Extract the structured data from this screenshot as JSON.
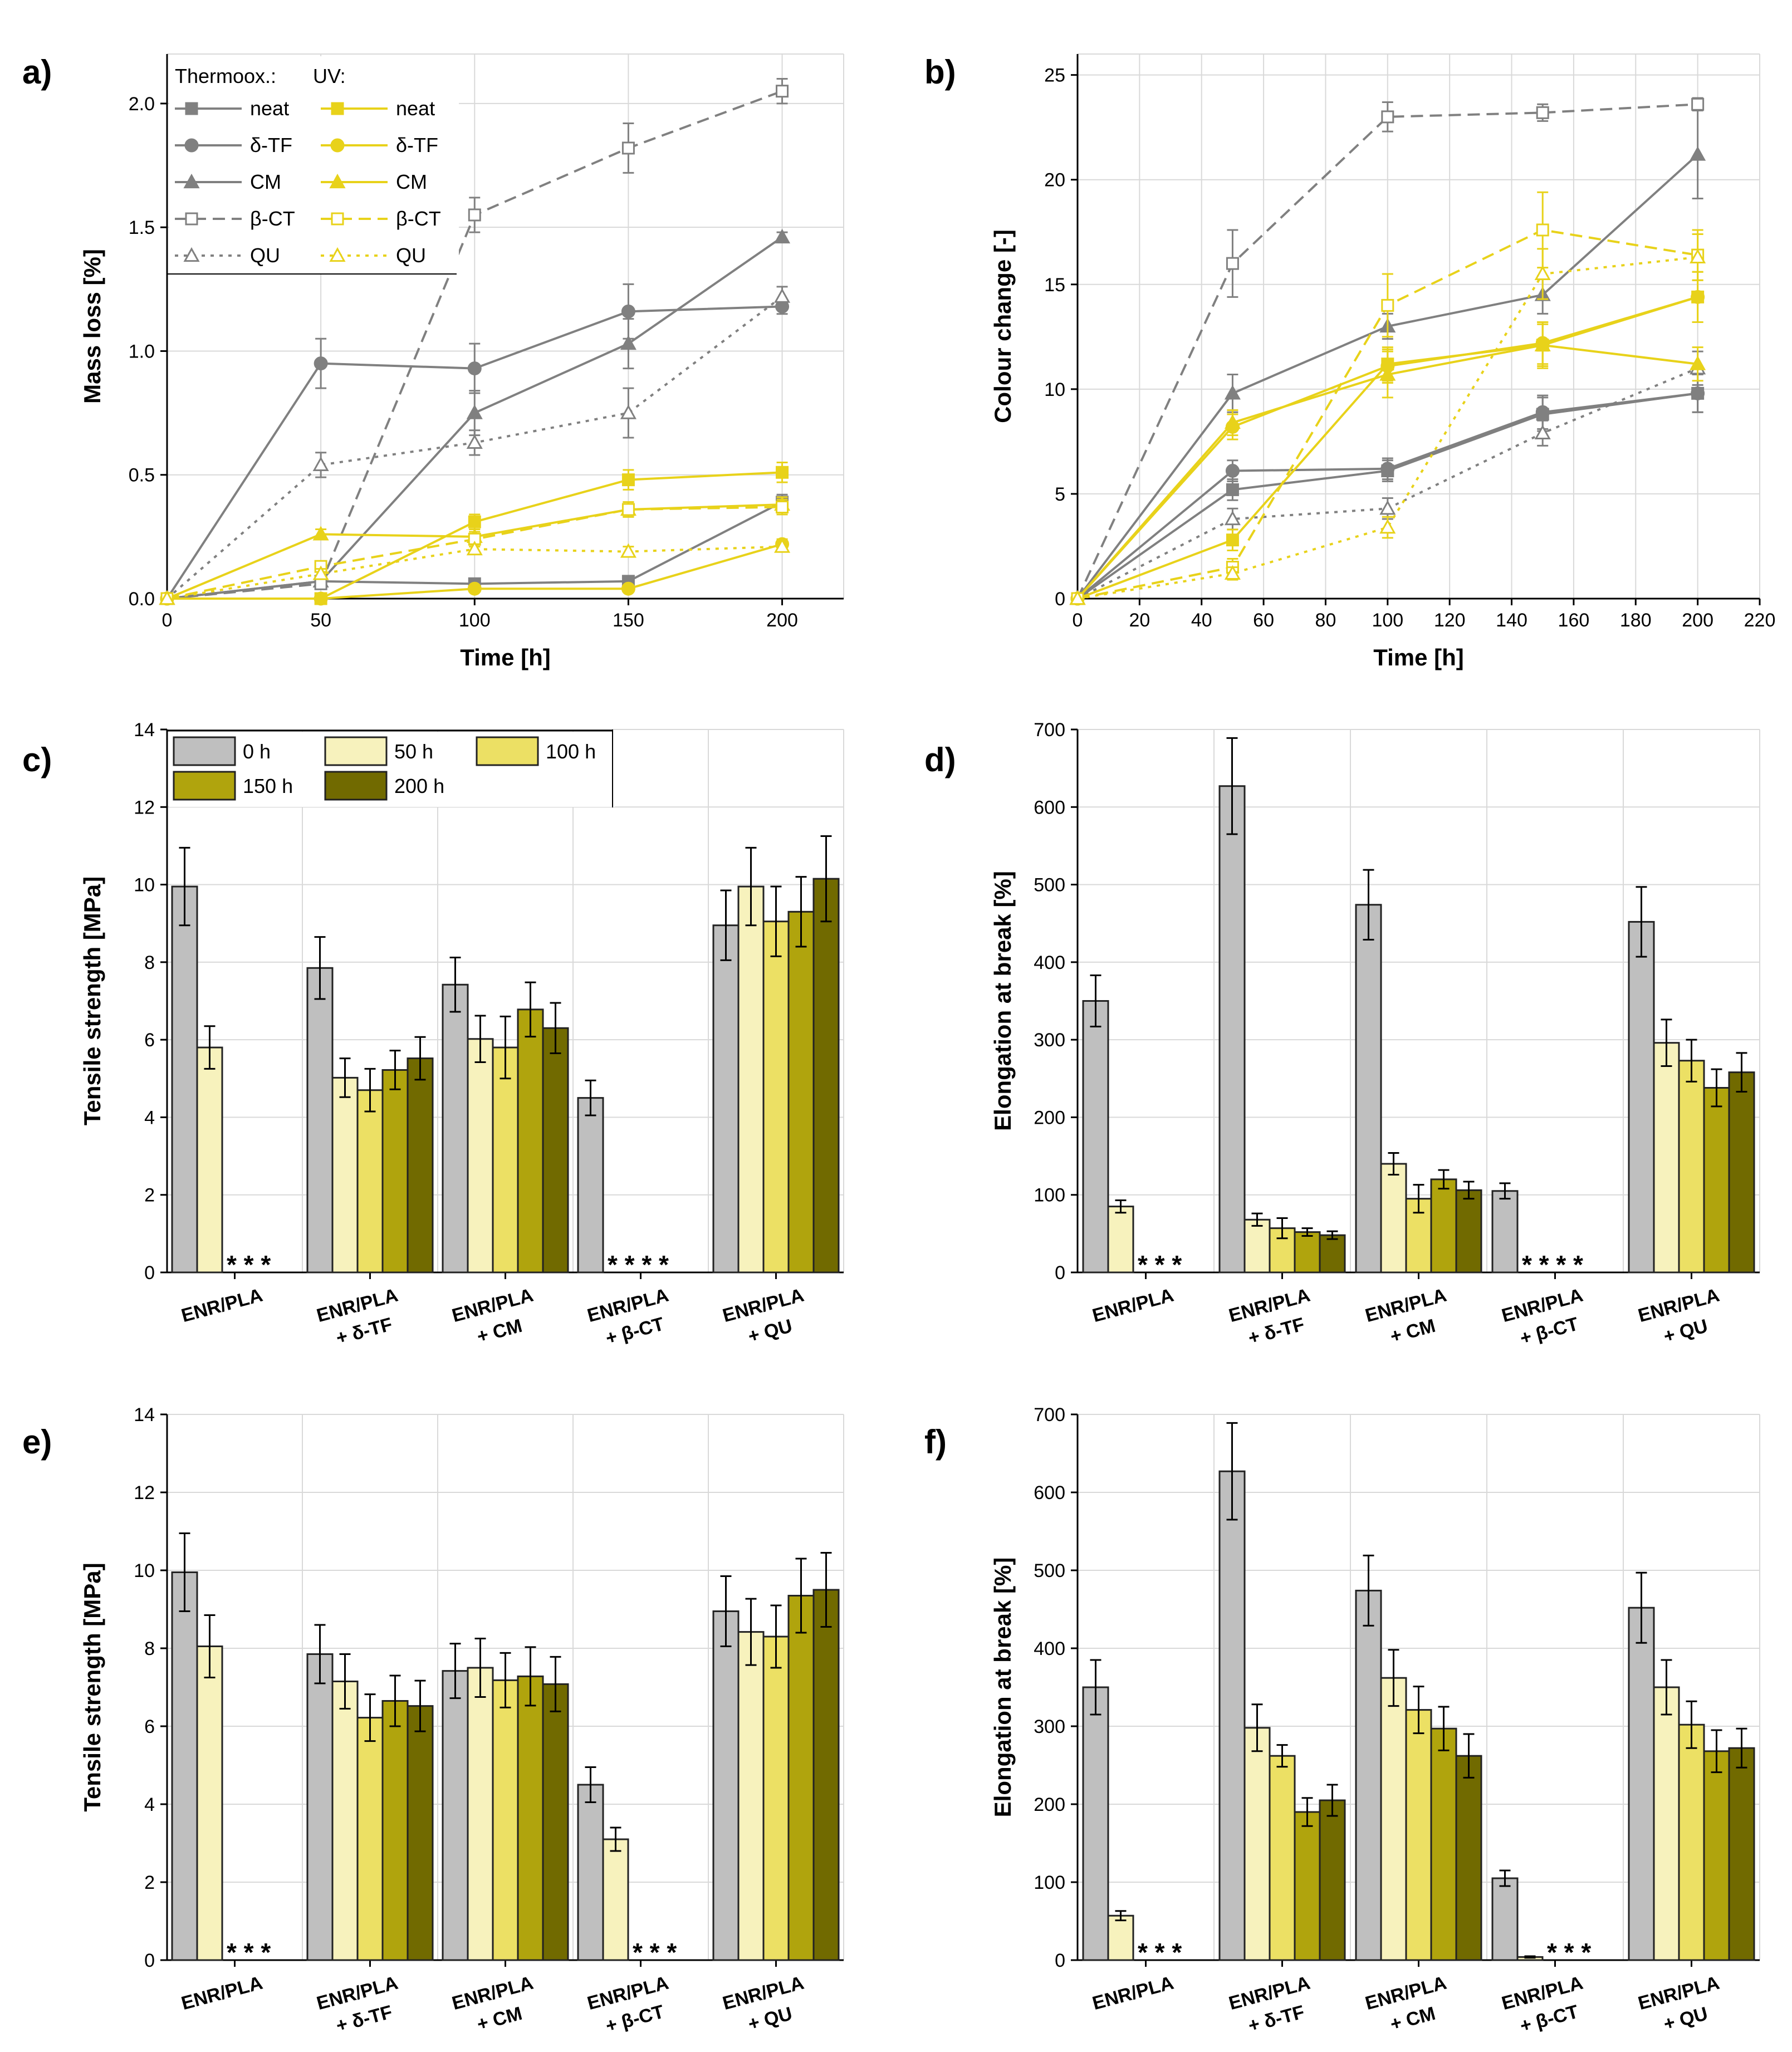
{
  "colors": {
    "thermo": "#808080",
    "uv": "#e8d21a",
    "h0": "#bfbfbf",
    "h50": "#f7f2bd",
    "h100": "#ece064",
    "h150": "#b0a40d",
    "h200": "#716a00",
    "grid": "#d9d9d9",
    "axis": "#000000"
  },
  "chart_data": [
    {
      "id": "a",
      "panel": "a)",
      "type": "line",
      "xlabel": "Time [h]",
      "ylabel": "Mass loss [%]",
      "xlim": [
        0,
        220
      ],
      "ylim": [
        0,
        2.2
      ],
      "xticks": [
        0,
        50,
        100,
        150,
        200
      ],
      "yticks": [
        0.0,
        0.5,
        1.0,
        1.5,
        2.0
      ],
      "ytick_labels": [
        "0.0",
        "0.5",
        "1.0",
        "1.5",
        "2.0"
      ],
      "legend": {
        "title_thermo": "Thermoox.:",
        "title_uv": "UV:",
        "labels": [
          "neat",
          "δ-TF",
          "CM",
          "β-CT",
          "QU"
        ]
      },
      "x": [
        0,
        50,
        100,
        150,
        200
      ],
      "series": [
        {
          "name": "neat",
          "group": "thermo",
          "marker": "square",
          "filled": true,
          "dash": "solid",
          "values": [
            0,
            0.07,
            0.06,
            0.07,
            0.39
          ],
          "errors": [
            0,
            0.02,
            0.02,
            0.02,
            0.03
          ]
        },
        {
          "name": "δ-TF",
          "group": "thermo",
          "marker": "circle",
          "filled": true,
          "dash": "solid",
          "values": [
            0,
            0.95,
            0.93,
            1.16,
            1.18
          ],
          "errors": [
            0,
            0.1,
            0.1,
            0.11,
            0.03
          ]
        },
        {
          "name": "CM",
          "group": "thermo",
          "marker": "triangle",
          "filled": true,
          "dash": "solid",
          "values": [
            0,
            0.07,
            0.75,
            1.03,
            1.46
          ],
          "errors": [
            0,
            0.02,
            0.09,
            0.1,
            0.02
          ]
        },
        {
          "name": "β-CT",
          "group": "thermo",
          "marker": "square",
          "filled": false,
          "dash": "dash",
          "values": [
            0,
            0.06,
            1.55,
            1.82,
            2.05
          ],
          "errors": [
            0,
            0.02,
            0.07,
            0.1,
            0.05
          ]
        },
        {
          "name": "QU",
          "group": "thermo",
          "marker": "triangle",
          "filled": false,
          "dash": "dot",
          "values": [
            0,
            0.54,
            0.63,
            0.75,
            1.22
          ],
          "errors": [
            0,
            0.05,
            0.05,
            0.1,
            0.04
          ]
        },
        {
          "name": "neat",
          "group": "uv",
          "marker": "square",
          "filled": true,
          "dash": "solid",
          "values": [
            0,
            0.0,
            0.31,
            0.48,
            0.51
          ],
          "errors": [
            0,
            0.01,
            0.03,
            0.04,
            0.04
          ]
        },
        {
          "name": "δ-TF",
          "group": "uv",
          "marker": "circle",
          "filled": true,
          "dash": "solid",
          "values": [
            0,
            0.0,
            0.04,
            0.04,
            0.22
          ],
          "errors": [
            0,
            0.01,
            0.01,
            0.01,
            0.02
          ]
        },
        {
          "name": "CM",
          "group": "uv",
          "marker": "triangle",
          "filled": true,
          "dash": "solid",
          "values": [
            0,
            0.26,
            0.25,
            0.36,
            0.38
          ],
          "errors": [
            0,
            0.02,
            0.03,
            0.03,
            0.03
          ]
        },
        {
          "name": "β-CT",
          "group": "uv",
          "marker": "square",
          "filled": false,
          "dash": "dash",
          "values": [
            0,
            0.13,
            0.24,
            0.36,
            0.37
          ],
          "errors": [
            0,
            0.02,
            0.03,
            0.03,
            0.03
          ]
        },
        {
          "name": "QU",
          "group": "uv",
          "marker": "triangle",
          "filled": false,
          "dash": "dot",
          "values": [
            0,
            0.1,
            0.2,
            0.19,
            0.21
          ],
          "errors": [
            0,
            0.02,
            0.02,
            0.02,
            0.02
          ]
        }
      ]
    },
    {
      "id": "b",
      "panel": "b)",
      "type": "line",
      "xlabel": "Time [h]",
      "ylabel": "Colour change [-]",
      "xlim": [
        0,
        220
      ],
      "ylim": [
        0,
        26
      ],
      "xticks": [
        0,
        20,
        40,
        60,
        80,
        100,
        120,
        140,
        160,
        180,
        200,
        220
      ],
      "yticks": [
        0,
        5,
        10,
        15,
        20,
        25
      ],
      "ytick_labels": [
        "0",
        "5",
        "10",
        "15",
        "20",
        "25"
      ],
      "x": [
        0,
        50,
        100,
        150,
        200
      ],
      "series": [
        {
          "name": "neat",
          "group": "thermo",
          "marker": "square",
          "filled": true,
          "dash": "solid",
          "values": [
            0,
            5.2,
            6.1,
            8.8,
            9.8
          ],
          "errors": [
            0,
            0.5,
            0.5,
            0.8,
            0.9
          ]
        },
        {
          "name": "δ-TF",
          "group": "thermo",
          "marker": "circle",
          "filled": true,
          "dash": "solid",
          "values": [
            0,
            6.1,
            6.2,
            8.9,
            9.8
          ],
          "errors": [
            0,
            0.5,
            0.5,
            0.8,
            0.9
          ]
        },
        {
          "name": "CM",
          "group": "thermo",
          "marker": "triangle",
          "filled": true,
          "dash": "solid",
          "values": [
            0,
            9.8,
            13.0,
            14.5,
            21.2
          ],
          "errors": [
            0,
            0.9,
            0.6,
            0.9,
            2.1
          ]
        },
        {
          "name": "β-CT",
          "group": "thermo",
          "marker": "square",
          "filled": false,
          "dash": "dash",
          "values": [
            0,
            16.0,
            23.0,
            23.2,
            23.6
          ],
          "errors": [
            0,
            1.6,
            0.7,
            0.4,
            0.3
          ]
        },
        {
          "name": "QU",
          "group": "thermo",
          "marker": "triangle",
          "filled": false,
          "dash": "dot",
          "values": [
            0,
            3.8,
            4.3,
            7.9,
            11.0
          ],
          "errors": [
            0,
            0.5,
            0.5,
            0.6,
            0.8
          ]
        },
        {
          "name": "neat",
          "group": "uv",
          "marker": "square",
          "filled": true,
          "dash": "solid",
          "values": [
            0,
            2.8,
            11.2,
            12.1,
            14.4
          ],
          "errors": [
            0,
            0.5,
            0.8,
            1.0,
            1.2
          ]
        },
        {
          "name": "δ-TF",
          "group": "uv",
          "marker": "circle",
          "filled": true,
          "dash": "solid",
          "values": [
            0,
            8.2,
            11.1,
            12.2,
            14.4
          ],
          "errors": [
            0,
            0.6,
            0.8,
            1.0,
            1.2
          ]
        },
        {
          "name": "CM",
          "group": "uv",
          "marker": "triangle",
          "filled": true,
          "dash": "solid",
          "values": [
            0,
            8.4,
            10.7,
            12.1,
            11.2
          ],
          "errors": [
            0,
            0.6,
            1.1,
            1.1,
            0.8
          ]
        },
        {
          "name": "β-CT",
          "group": "uv",
          "marker": "square",
          "filled": false,
          "dash": "dash",
          "values": [
            0,
            1.5,
            14.0,
            17.6,
            16.4
          ],
          "errors": [
            0,
            0.4,
            1.5,
            1.8,
            1.2
          ]
        },
        {
          "name": "QU",
          "group": "uv",
          "marker": "triangle",
          "filled": false,
          "dash": "dot",
          "values": [
            0,
            1.2,
            3.4,
            15.5,
            16.3
          ],
          "errors": [
            0,
            0.3,
            0.5,
            1.2,
            1.1
          ]
        }
      ]
    },
    {
      "id": "c",
      "panel": "c)",
      "type": "bar",
      "xlabel": "",
      "ylabel": "Tensile strength [MPa]",
      "ylim": [
        0,
        14
      ],
      "yticks": [
        0,
        2,
        4,
        6,
        8,
        10,
        12,
        14
      ],
      "ytick_labels": [
        "0",
        "2",
        "4",
        "6",
        "8",
        "10",
        "12",
        "14"
      ],
      "categories": [
        [
          "ENR/PLA"
        ],
        [
          "ENR/PLA",
          "+ δ-TF"
        ],
        [
          "ENR/PLA",
          "+ CM"
        ],
        [
          "ENR/PLA",
          "+ β-CT"
        ],
        [
          "ENR/PLA",
          "+ QU"
        ]
      ],
      "legend": [
        "0 h",
        "50 h",
        "100 h",
        "150 h",
        "200 h"
      ],
      "series": [
        {
          "name": "0 h",
          "values": [
            9.95,
            7.85,
            7.42,
            4.5,
            8.95
          ],
          "errors": [
            1.0,
            0.8,
            0.7,
            0.45,
            0.9
          ]
        },
        {
          "name": "50 h",
          "values": [
            5.8,
            5.02,
            6.02,
            0,
            9.95
          ],
          "errors": [
            0.55,
            0.5,
            0.6,
            0,
            1.0
          ]
        },
        {
          "name": "100 h",
          "values": [
            0,
            4.7,
            5.8,
            0,
            9.05
          ],
          "errors": [
            0,
            0.55,
            0.8,
            0,
            0.9
          ]
        },
        {
          "name": "150 h",
          "values": [
            0,
            5.22,
            6.78,
            0,
            9.3
          ],
          "errors": [
            0,
            0.5,
            0.7,
            0,
            0.9
          ]
        },
        {
          "name": "200 h",
          "values": [
            0,
            5.52,
            6.3,
            0,
            10.15
          ],
          "errors": [
            0,
            0.55,
            0.65,
            0,
            1.1
          ]
        }
      ],
      "missing_markers": [
        "* * *",
        "",
        "",
        "* * * *",
        ""
      ]
    },
    {
      "id": "d",
      "panel": "d)",
      "type": "bar",
      "xlabel": "",
      "ylabel": "Elongation at break [%]",
      "ylim": [
        0,
        700
      ],
      "yticks": [
        0,
        100,
        200,
        300,
        400,
        500,
        600,
        700
      ],
      "ytick_labels": [
        "0",
        "100",
        "200",
        "300",
        "400",
        "500",
        "600",
        "700"
      ],
      "categories": [
        [
          "ENR/PLA"
        ],
        [
          "ENR/PLA",
          "+ δ-TF"
        ],
        [
          "ENR/PLA",
          "+ CM"
        ],
        [
          "ENR/PLA",
          "+ β-CT"
        ],
        [
          "ENR/PLA",
          "+ QU"
        ]
      ],
      "series": [
        {
          "name": "0 h",
          "values": [
            350,
            627,
            474,
            105,
            452
          ],
          "errors": [
            33,
            62,
            45,
            10,
            45
          ]
        },
        {
          "name": "50 h",
          "values": [
            85,
            68,
            140,
            0,
            296
          ],
          "errors": [
            8,
            8,
            14,
            0,
            30
          ]
        },
        {
          "name": "100 h",
          "values": [
            0,
            57,
            95,
            0,
            273
          ],
          "errors": [
            0,
            13,
            18,
            0,
            27
          ]
        },
        {
          "name": "150 h",
          "values": [
            0,
            52,
            120,
            0,
            238
          ],
          "errors": [
            0,
            5,
            12,
            0,
            24
          ]
        },
        {
          "name": "200 h",
          "values": [
            0,
            48,
            106,
            0,
            258
          ],
          "errors": [
            0,
            5,
            11,
            0,
            25
          ]
        }
      ],
      "missing_markers": [
        "* * *",
        "",
        "",
        "* * * *",
        ""
      ]
    },
    {
      "id": "e",
      "panel": "e)",
      "type": "bar",
      "xlabel": "",
      "ylabel": "Tensile strength [MPa]",
      "ylim": [
        0,
        14
      ],
      "yticks": [
        0,
        2,
        4,
        6,
        8,
        10,
        12,
        14
      ],
      "ytick_labels": [
        "0",
        "2",
        "4",
        "6",
        "8",
        "10",
        "12",
        "14"
      ],
      "categories": [
        [
          "ENR/PLA"
        ],
        [
          "ENR/PLA",
          "+ δ-TF"
        ],
        [
          "ENR/PLA",
          "+ CM"
        ],
        [
          "ENR/PLA",
          "+ β-CT"
        ],
        [
          "ENR/PLA",
          "+ QU"
        ]
      ],
      "series": [
        {
          "name": "0 h",
          "values": [
            9.95,
            7.85,
            7.42,
            4.5,
            8.95
          ],
          "errors": [
            1.0,
            0.75,
            0.7,
            0.45,
            0.9
          ]
        },
        {
          "name": "50 h",
          "values": [
            8.05,
            7.15,
            7.5,
            3.1,
            8.42
          ],
          "errors": [
            0.8,
            0.7,
            0.75,
            0.3,
            0.85
          ]
        },
        {
          "name": "100 h",
          "values": [
            0,
            6.22,
            7.18,
            0,
            8.3
          ],
          "errors": [
            0,
            0.6,
            0.7,
            0,
            0.8
          ]
        },
        {
          "name": "150 h",
          "values": [
            0,
            6.65,
            7.28,
            0,
            9.35
          ],
          "errors": [
            0,
            0.65,
            0.75,
            0,
            0.95
          ]
        },
        {
          "name": "200 h",
          "values": [
            0,
            6.52,
            7.08,
            0,
            9.5
          ],
          "errors": [
            0,
            0.65,
            0.7,
            0,
            0.95
          ]
        }
      ],
      "missing_markers": [
        "* * *",
        "",
        "",
        "* * *",
        ""
      ]
    },
    {
      "id": "f",
      "panel": "f)",
      "type": "bar",
      "xlabel": "",
      "ylabel": "Elongation at break [%]",
      "ylim": [
        0,
        700
      ],
      "yticks": [
        0,
        100,
        200,
        300,
        400,
        500,
        600,
        700
      ],
      "ytick_labels": [
        "0",
        "100",
        "200",
        "300",
        "400",
        "500",
        "600",
        "700"
      ],
      "categories": [
        [
          "ENR/PLA"
        ],
        [
          "ENR/PLA",
          "+ δ-TF"
        ],
        [
          "ENR/PLA",
          "+ CM"
        ],
        [
          "ENR/PLA",
          "+ β-CT"
        ],
        [
          "ENR/PLA",
          "+ QU"
        ]
      ],
      "series": [
        {
          "name": "0 h",
          "values": [
            350,
            627,
            474,
            105,
            452
          ],
          "errors": [
            35,
            62,
            45,
            10,
            45
          ]
        },
        {
          "name": "50 h",
          "values": [
            57,
            298,
            362,
            4,
            350
          ],
          "errors": [
            6,
            30,
            36,
            1,
            35
          ]
        },
        {
          "name": "100 h",
          "values": [
            0,
            262,
            321,
            0,
            302
          ],
          "errors": [
            0,
            14,
            30,
            0,
            30
          ]
        },
        {
          "name": "150 h",
          "values": [
            0,
            190,
            297,
            0,
            268
          ],
          "errors": [
            0,
            18,
            28,
            0,
            27
          ]
        },
        {
          "name": "200 h",
          "values": [
            0,
            205,
            262,
            0,
            272
          ],
          "errors": [
            0,
            20,
            28,
            0,
            25
          ]
        }
      ],
      "missing_markers": [
        "* * *",
        "",
        "",
        "* * *",
        ""
      ]
    }
  ]
}
